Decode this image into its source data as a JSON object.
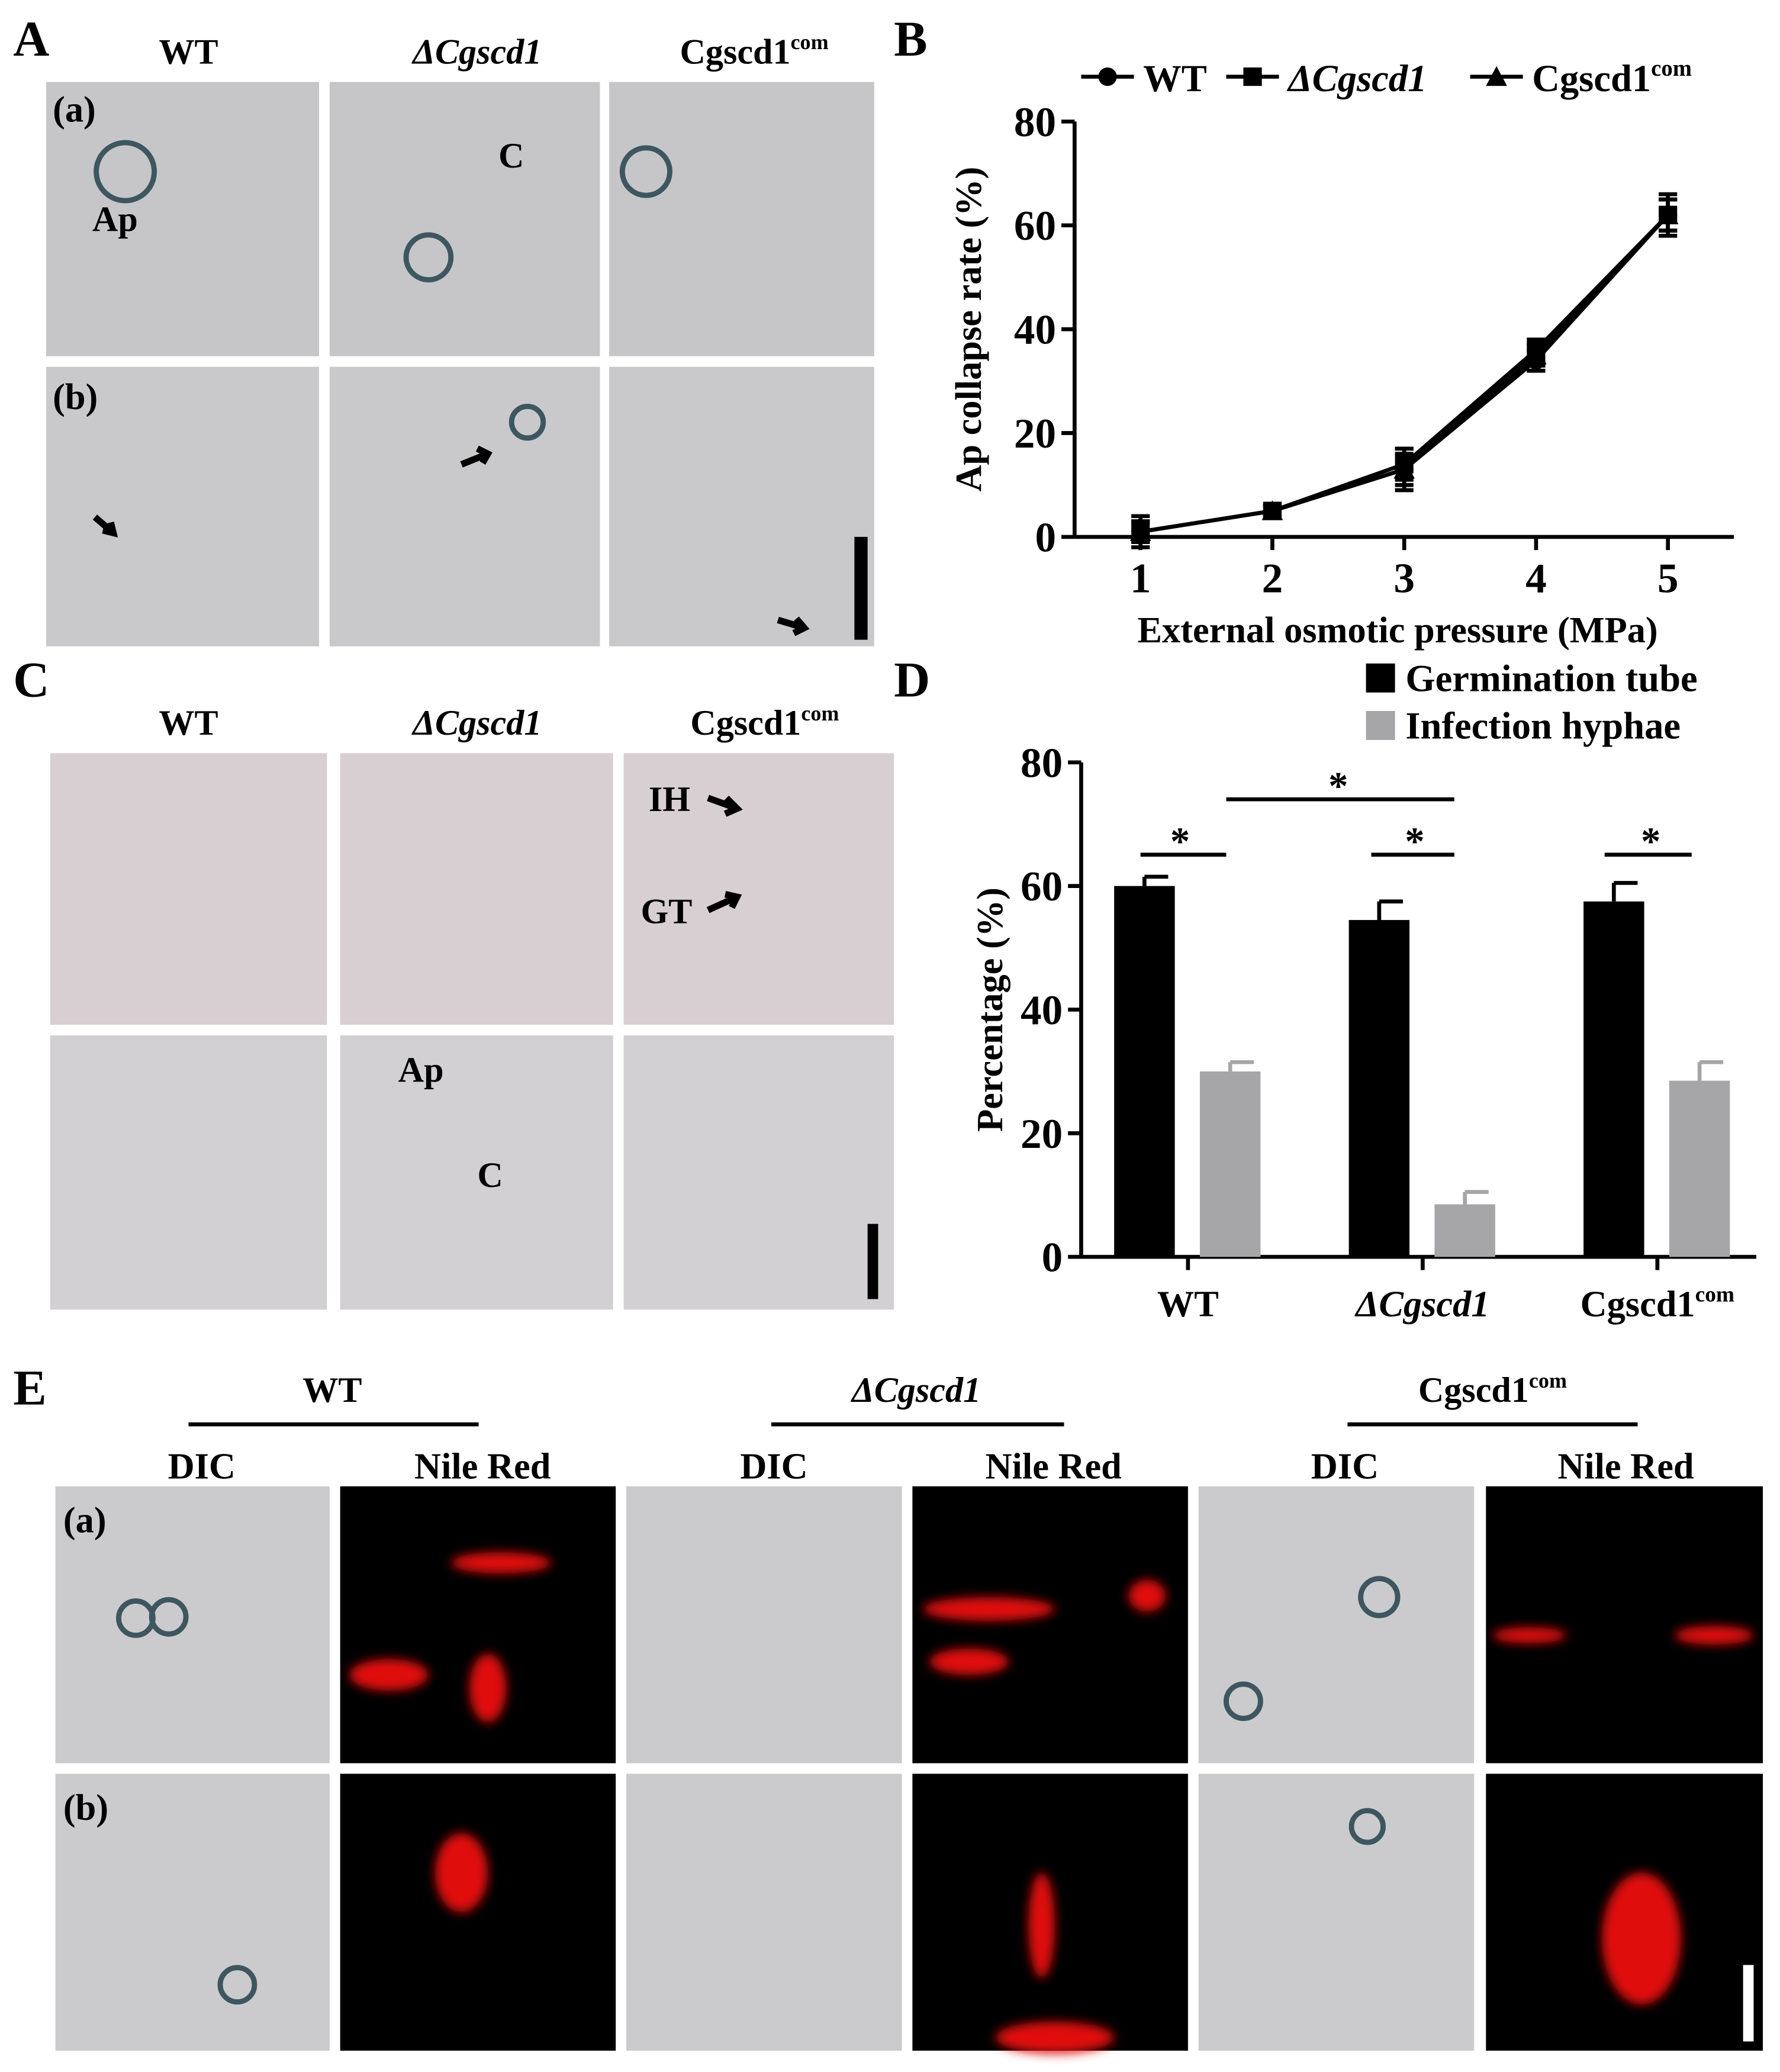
{
  "panel_labels": [
    "A",
    "B",
    "C",
    "D",
    "E"
  ],
  "strains": [
    {
      "name": "WT"
    },
    {
      "name": "ΔCgscd1"
    },
    {
      "name": "Cgscd1",
      "sup": "com"
    }
  ],
  "row_labels": [
    "(a)",
    "(b)"
  ],
  "panel_a": {
    "annotations": [
      "Ap",
      "C"
    ]
  },
  "panel_c": {
    "annotations": [
      "IH",
      "GT",
      "Ap",
      "C"
    ]
  },
  "panel_e": {
    "channels": [
      "DIC",
      "Nile Red"
    ]
  },
  "chart_data": [
    {
      "type": "line",
      "x_label": "External osmotic pressure (MPa)",
      "y_label": "Ap collapse rate (%)",
      "x": [
        1,
        2,
        3,
        4,
        5
      ],
      "series": [
        {
          "name": "WT",
          "color": "#000000",
          "marker": "circle",
          "values": [
            1,
            5,
            13,
            34,
            62
          ],
          "errors": [
            3,
            1,
            3,
            2,
            4
          ]
        },
        {
          "name": "ΔCgscd1",
          "color": "#000000",
          "marker": "square",
          "values": [
            1,
            5,
            14,
            36,
            62
          ],
          "errors": [
            2,
            1,
            3,
            2,
            3
          ]
        },
        {
          "name": "Cgscd1",
          "name_sup": "com",
          "color": "#000000",
          "marker": "triangle",
          "values": [
            1,
            5,
            13,
            35,
            62
          ],
          "errors": [
            2,
            1,
            4,
            2,
            3
          ]
        }
      ],
      "xlim": [
        0.5,
        5.5
      ],
      "xticks": [
        1,
        2,
        3,
        4,
        5
      ],
      "ylim": [
        0,
        80
      ],
      "yticks": [
        0,
        20,
        40,
        60,
        80
      ]
    },
    {
      "type": "bar",
      "y_label": "Percentage (%)",
      "categories": [
        "WT",
        "ΔCgscd1",
        "Cgscd1"
      ],
      "categories_sup": [
        null,
        null,
        "com"
      ],
      "series": [
        {
          "name": "Germination tube",
          "color": "#000000",
          "values": [
            60,
            54.5,
            57.5
          ],
          "errors": [
            1.5,
            3,
            3
          ]
        },
        {
          "name": "Infection hyphae",
          "color": "#a6a6a8",
          "values": [
            30,
            8.5,
            28.5
          ],
          "errors": [
            1.5,
            2,
            3
          ]
        }
      ],
      "ylim": [
        0,
        80
      ],
      "yticks": [
        0,
        20,
        40,
        60,
        80
      ],
      "annotations": [
        "*",
        "*",
        "*",
        "*"
      ]
    }
  ]
}
